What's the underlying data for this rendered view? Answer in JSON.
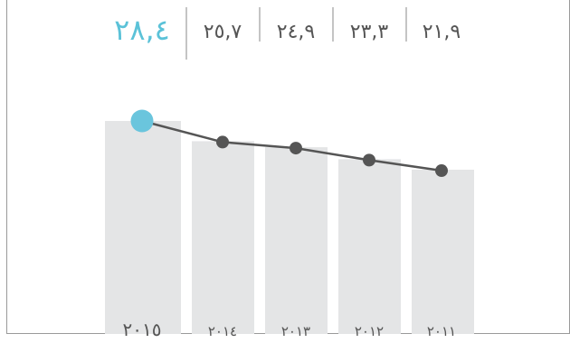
{
  "chart_data": {
    "type": "bar",
    "categories": [
      "٢٠١٥",
      "٢٠١٤",
      "٢٠١٣",
      "٢٠١٢",
      "٢٠١١"
    ],
    "values": [
      28.4,
      25.7,
      24.9,
      23.3,
      21.9
    ],
    "value_labels": [
      "٢٨,٤",
      "٢٥,٧",
      "٢٤,٩",
      "٢٣,٣",
      "٢١,٩"
    ],
    "overlay": "line with markers through bar tops",
    "highlight_index": 0,
    "ylim": [
      0,
      40
    ],
    "grid": false,
    "title": "",
    "xlabel": "",
    "ylabel": "",
    "colors": {
      "bar": "#e4e5e6",
      "line": "#555555",
      "marker": "#555555",
      "highlight": "#6ac5dd",
      "divider": "#888888",
      "label": "#555555"
    }
  }
}
